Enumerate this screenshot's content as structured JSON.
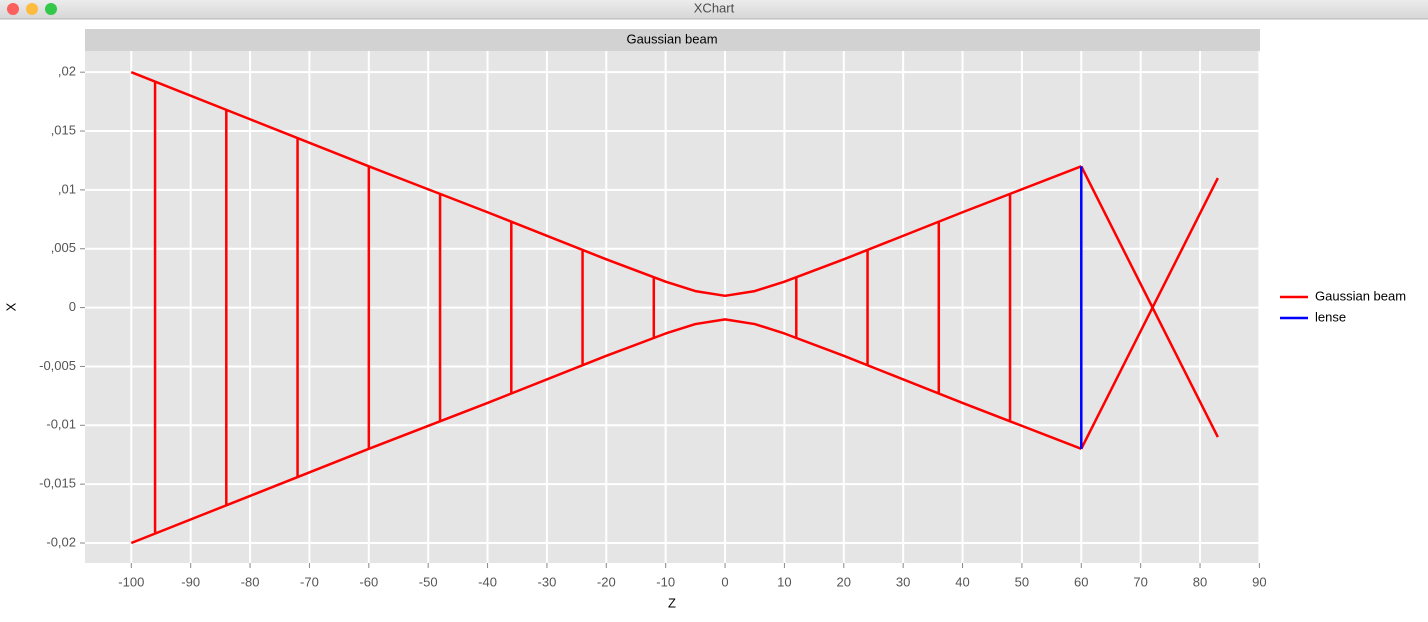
{
  "window_title": "XChart",
  "chart_data": {
    "type": "line",
    "title": "Gaussian beam",
    "x_label": "Z",
    "y_label": "X",
    "series": [
      {
        "name": "Gaussian beam",
        "color": "#ff0000",
        "x": [
          -100,
          -80,
          -60,
          -40,
          -20,
          -10,
          -5,
          0,
          5,
          10,
          20,
          40,
          60,
          null,
          -100,
          -80,
          -60,
          -40,
          -20,
          -10,
          -5,
          0,
          5,
          10,
          20,
          40,
          60,
          null,
          60,
          72,
          83,
          null,
          60,
          72,
          83,
          null,
          -96,
          -96,
          null,
          -84,
          -84,
          null,
          -72,
          -72,
          null,
          -60,
          -60,
          null,
          -48,
          -48,
          null,
          -36,
          -36,
          null,
          -24,
          -24,
          null,
          -12,
          -12,
          null,
          12,
          12,
          null,
          24,
          24,
          null,
          36,
          36,
          null,
          48,
          48
        ],
        "values": [
          0.02,
          0.016,
          0.012,
          0.0081,
          0.0041,
          0.0022,
          0.0014,
          0.001,
          0.0014,
          0.0022,
          0.0041,
          0.0081,
          0.012,
          null,
          -0.02,
          -0.016,
          -0.012,
          -0.0081,
          -0.0041,
          -0.0022,
          -0.0014,
          -0.001,
          -0.0014,
          -0.0022,
          -0.0041,
          -0.0081,
          -0.012,
          null,
          0.012,
          0,
          0.011,
          null,
          -0.012,
          0,
          -0.011,
          null,
          0.0192,
          -0.0192,
          null,
          0.0168,
          -0.0168,
          null,
          0.0144,
          -0.0144,
          null,
          0.012,
          -0.012,
          null,
          0.0097,
          -0.0097,
          null,
          0.0073,
          -0.0073,
          null,
          0.0049,
          -0.0049,
          null,
          0.0026,
          -0.0026,
          null,
          0.0026,
          -0.0026,
          null,
          0.0049,
          -0.0049,
          null,
          0.0073,
          -0.0073,
          null,
          0.0097,
          -0.0097
        ]
      },
      {
        "name": "lense",
        "color": "#0000ff",
        "x": [
          60,
          60
        ],
        "values": [
          -0.012,
          0.012
        ]
      }
    ],
    "xlim": [
      -107.8,
      90.1
    ],
    "xticks": [
      -100,
      -90,
      -80,
      -70,
      -60,
      -50,
      -40,
      -30,
      -20,
      -10,
      0,
      10,
      20,
      30,
      40,
      50,
      60,
      70,
      80,
      90
    ],
    "ylim": [
      -0.0217,
      0.0218
    ],
    "yticks": [
      {
        "value": -0.02,
        "label": "-0,02"
      },
      {
        "value": -0.015,
        "label": "-0,015"
      },
      {
        "value": -0.01,
        "label": "-0,01"
      },
      {
        "value": -0.005,
        "label": "-0,005"
      },
      0,
      {
        "value": 0.005,
        "label": ",005"
      },
      {
        "value": 0.01,
        "label": ",01"
      },
      {
        "value": 0.015,
        "label": ",015"
      },
      {
        "value": 0.02,
        "label": ",02"
      }
    ],
    "grid": true,
    "legend": "right"
  }
}
